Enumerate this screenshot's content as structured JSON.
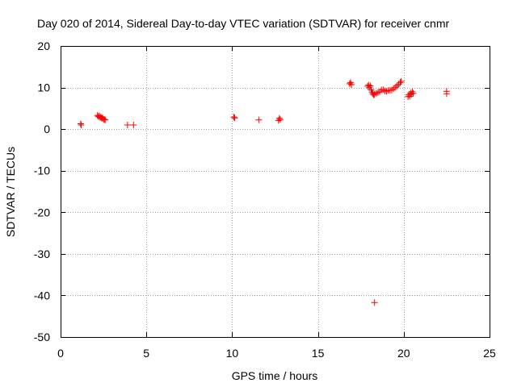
{
  "chart_data": {
    "type": "scatter",
    "title": "Day 020 of 2014, Sidereal Day-to-day VTEC variation (SDTVAR) for receiver cnmr",
    "xlabel": "GPS time / hours",
    "ylabel": "SDTVAR / TECUs",
    "xlim": [
      0,
      25
    ],
    "ylim": [
      -50,
      20
    ],
    "xticks": [
      0,
      5,
      10,
      15,
      20,
      25
    ],
    "yticks": [
      -50,
      -40,
      -30,
      -20,
      -10,
      0,
      10,
      20
    ],
    "grid": true,
    "marker": "plus",
    "colors": {
      "series": "#ff0000",
      "grid": "#a0a0a0",
      "axis": "#000000"
    },
    "series": [
      {
        "name": "SDTVAR",
        "x": [
          1.17,
          1.2,
          2.15,
          2.2,
          2.25,
          2.3,
          2.35,
          2.4,
          2.45,
          2.5,
          2.55,
          2.6,
          3.9,
          4.25,
          10.1,
          10.15,
          11.55,
          12.7,
          12.75,
          12.8,
          16.85,
          16.9,
          16.95,
          17.9,
          17.95,
          18.0,
          18.05,
          18.1,
          18.15,
          18.2,
          18.25,
          18.3,
          18.3,
          18.4,
          18.5,
          18.6,
          18.7,
          18.8,
          18.9,
          19.0,
          19.1,
          19.2,
          19.3,
          19.4,
          19.5,
          19.6,
          19.7,
          19.8,
          19.85,
          20.25,
          20.3,
          20.35,
          20.4,
          20.45,
          20.5,
          20.55,
          22.5,
          22.5
        ],
        "y": [
          1.3,
          1.0,
          3.3,
          3.0,
          3.2,
          2.8,
          2.9,
          2.6,
          2.7,
          2.4,
          2.3,
          2.2,
          1.0,
          1.0,
          2.9,
          2.7,
          2.2,
          2.1,
          2.6,
          2.3,
          10.9,
          11.2,
          10.7,
          10.3,
          10.6,
          10.0,
          10.4,
          9.4,
          8.9,
          8.5,
          8.2,
          8.4,
          -41.7,
          8.6,
          8.8,
          9.0,
          9.4,
          9.5,
          9.2,
          9.1,
          9.3,
          9.3,
          9.4,
          9.7,
          10.0,
          10.4,
          10.8,
          11.2,
          11.5,
          7.8,
          8.3,
          7.9,
          8.7,
          8.4,
          9.0,
          8.6,
          9.1,
          8.5
        ]
      }
    ]
  }
}
